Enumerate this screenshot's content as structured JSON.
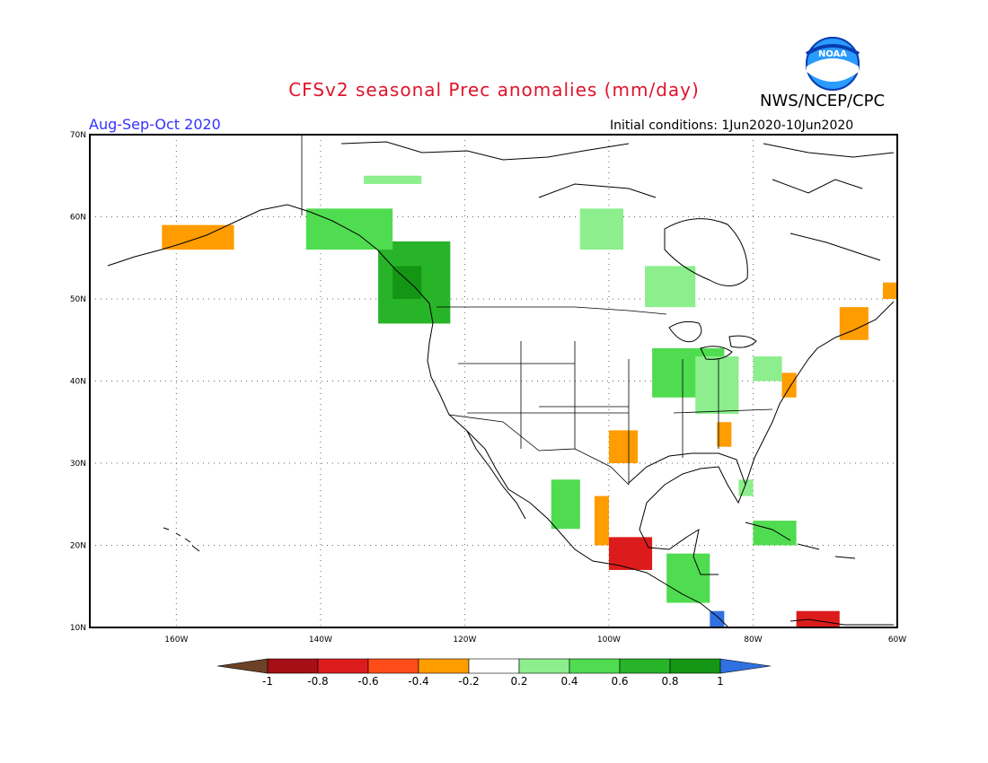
{
  "header": {
    "title": "CFSv2 seasonal Prec anomalies (mm/day)",
    "agency": "NWS/NCEP/CPC",
    "logo_text": "NOAA",
    "season": "Aug-Sep-Oct 2020",
    "initial_conditions": "Initial conditions: 1Jun2020-10Jun2020"
  },
  "map": {
    "lon_range": [
      -172,
      -60
    ],
    "lat_range": [
      10,
      70
    ],
    "lon_ticks": [
      {
        "lon": -160,
        "label": "160W"
      },
      {
        "lon": -140,
        "label": "140W"
      },
      {
        "lon": -120,
        "label": "120W"
      },
      {
        "lon": -100,
        "label": "100W"
      },
      {
        "lon": -80,
        "label": "80W"
      },
      {
        "lon": -60,
        "label": "60W"
      }
    ],
    "lat_ticks": [
      {
        "lat": 10,
        "label": "10N"
      },
      {
        "lat": 20,
        "label": "20N"
      },
      {
        "lat": 30,
        "label": "30N"
      },
      {
        "lat": 40,
        "label": "40N"
      },
      {
        "lat": 50,
        "label": "50N"
      },
      {
        "lat": 60,
        "label": "60N"
      },
      {
        "lat": 70,
        "label": "70N"
      }
    ],
    "grid": "dotted"
  },
  "colorbar": {
    "labels": [
      "-1",
      "-0.8",
      "-0.6",
      "-0.4",
      "-0.2",
      "0.2",
      "0.4",
      "0.6",
      "0.8",
      "1"
    ],
    "colors": [
      "#6b4226",
      "#a50f15",
      "#dc1c1c",
      "#ff4d1a",
      "#ff9c00",
      "#ffffff",
      "#8cee8c",
      "#50dc50",
      "#28b428",
      "#149614",
      "#3070e0"
    ]
  },
  "chart_data": {
    "type": "heatmap",
    "anomaly_regions": [
      {
        "name": "pacific-northwest-wet",
        "level": 0.6,
        "lon": [
          -132,
          -122
        ],
        "lat": [
          47,
          57
        ]
      },
      {
        "name": "bc-coast-strong-wet",
        "level": 0.8,
        "lon": [
          -130,
          -126
        ],
        "lat": [
          50,
          54
        ]
      },
      {
        "name": "alaska-panhandle-wet",
        "level": 0.4,
        "lon": [
          -142,
          -130
        ],
        "lat": [
          56,
          61
        ]
      },
      {
        "name": "hudson-bay-west-wet",
        "level": 0.2,
        "lon": [
          -104,
          -98
        ],
        "lat": [
          56,
          61
        ]
      },
      {
        "name": "ontario-wet",
        "level": 0.2,
        "lon": [
          -95,
          -88
        ],
        "lat": [
          49,
          54
        ]
      },
      {
        "name": "midwest-wet",
        "level": 0.4,
        "lon": [
          -94,
          -84
        ],
        "lat": [
          38,
          44
        ]
      },
      {
        "name": "ohio-valley-wet",
        "level": 0.2,
        "lon": [
          -88,
          -82
        ],
        "lat": [
          36,
          43
        ]
      },
      {
        "name": "great-lakes-east-wet",
        "level": 0.2,
        "lon": [
          -80,
          -76
        ],
        "lat": [
          40,
          43
        ]
      },
      {
        "name": "texas-dry",
        "level": -0.2,
        "lon": [
          -100,
          -96
        ],
        "lat": [
          30,
          34
        ]
      },
      {
        "name": "georgia-dry",
        "level": -0.2,
        "lon": [
          -85,
          -83
        ],
        "lat": [
          32,
          35
        ]
      },
      {
        "name": "mid-atlantic-dry",
        "level": -0.2,
        "lon": [
          -76,
          -74
        ],
        "lat": [
          38,
          41
        ]
      },
      {
        "name": "quebec-east-dry",
        "level": -0.2,
        "lon": [
          -68,
          -64
        ],
        "lat": [
          45,
          49
        ]
      },
      {
        "name": "labrador-dry",
        "level": -0.2,
        "lon": [
          -62,
          -60
        ],
        "lat": [
          50,
          52
        ]
      },
      {
        "name": "mexico-west-wet",
        "level": 0.4,
        "lon": [
          -108,
          -104
        ],
        "lat": [
          22,
          28
        ]
      },
      {
        "name": "mexico-sierra-dry",
        "level": -0.2,
        "lon": [
          -102,
          -100
        ],
        "lat": [
          20,
          26
        ]
      },
      {
        "name": "southern-mexico-dry",
        "level": -0.6,
        "lon": [
          -100,
          -94
        ],
        "lat": [
          17,
          21
        ]
      },
      {
        "name": "central-america-wet",
        "level": 0.4,
        "lon": [
          -92,
          -86
        ],
        "lat": [
          13,
          19
        ]
      },
      {
        "name": "venezuela-coast-dry",
        "level": -0.6,
        "lon": [
          -74,
          -68
        ],
        "lat": [
          10,
          12
        ]
      },
      {
        "name": "nicaragua-strong-wet",
        "level": 1.0,
        "lon": [
          -86,
          -84
        ],
        "lat": [
          10,
          12
        ]
      },
      {
        "name": "alaska-southwest-dry",
        "level": -0.2,
        "lon": [
          -162,
          -152
        ],
        "lat": [
          56,
          59
        ]
      },
      {
        "name": "cuba-wet",
        "level": 0.4,
        "lon": [
          -80,
          -74
        ],
        "lat": [
          20,
          23
        ]
      },
      {
        "name": "florida-wet",
        "level": 0.2,
        "lon": [
          -82,
          -80
        ],
        "lat": [
          26,
          28
        ]
      },
      {
        "name": "canadian-arctic-wet",
        "level": 0.2,
        "lon": [
          -134,
          -126
        ],
        "lat": [
          64,
          65
        ]
      }
    ]
  }
}
